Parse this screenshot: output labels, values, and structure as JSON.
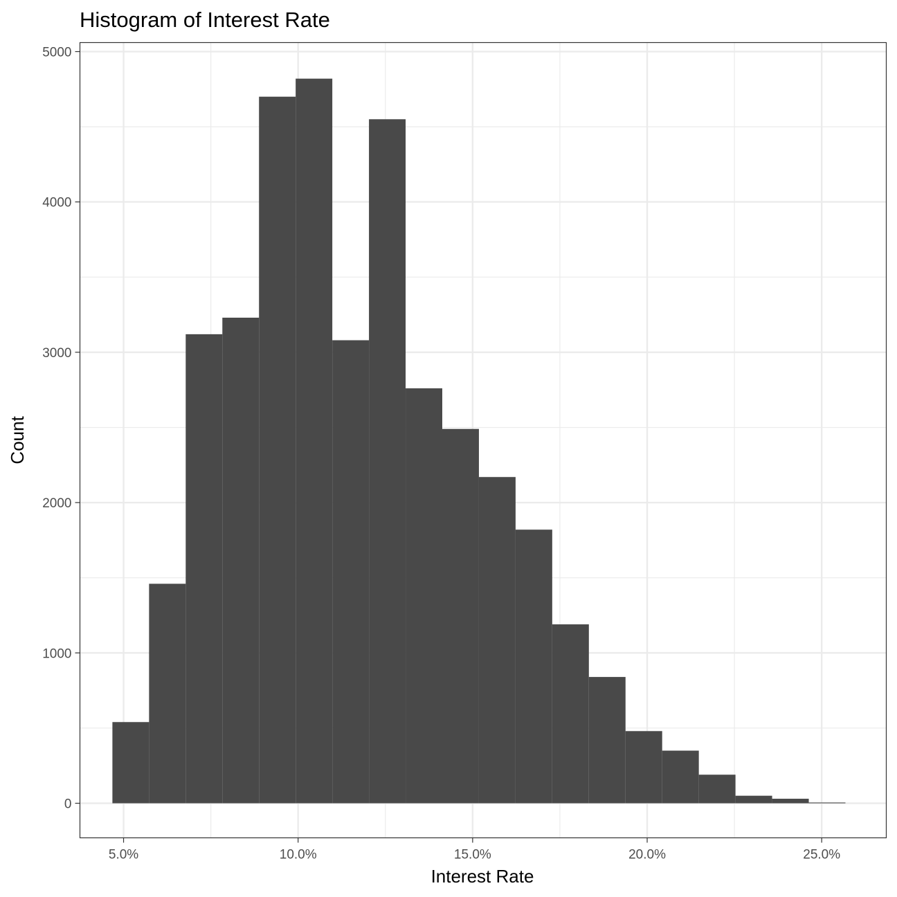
{
  "chart_data": {
    "type": "bar",
    "title": "Histogram of Interest Rate",
    "xlabel": "Interest Rate",
    "ylabel": "Count",
    "xlim": [
      0.0375,
      0.2685
    ],
    "ylim": [
      -230,
      5060
    ],
    "x_ticks": [
      {
        "value": 0.05,
        "label": "5.0%"
      },
      {
        "value": 0.1,
        "label": "10.0%"
      },
      {
        "value": 0.15,
        "label": "15.0%"
      },
      {
        "value": 0.2,
        "label": "20.0%"
      },
      {
        "value": 0.25,
        "label": "25.0%"
      }
    ],
    "x_minor_ticks": [
      0.075,
      0.125,
      0.175,
      0.225
    ],
    "y_ticks": [
      {
        "value": 0,
        "label": "0"
      },
      {
        "value": 1000,
        "label": "1000"
      },
      {
        "value": 2000,
        "label": "2000"
      },
      {
        "value": 3000,
        "label": "3000"
      },
      {
        "value": 4000,
        "label": "4000"
      },
      {
        "value": 5000,
        "label": "5000"
      }
    ],
    "y_minor_ticks": [
      500,
      1500,
      2500,
      3500,
      4500
    ],
    "bin_start": 0.0468,
    "bin_width": 0.0105,
    "values": [
      540,
      1460,
      3120,
      3230,
      4700,
      4820,
      3080,
      4550,
      2760,
      2490,
      2170,
      1820,
      1190,
      840,
      480,
      350,
      190,
      50,
      30,
      5
    ],
    "grid": true,
    "bar_color": "#494949",
    "grid_color": "#ebebeb",
    "panel_border_color": "#333333"
  }
}
